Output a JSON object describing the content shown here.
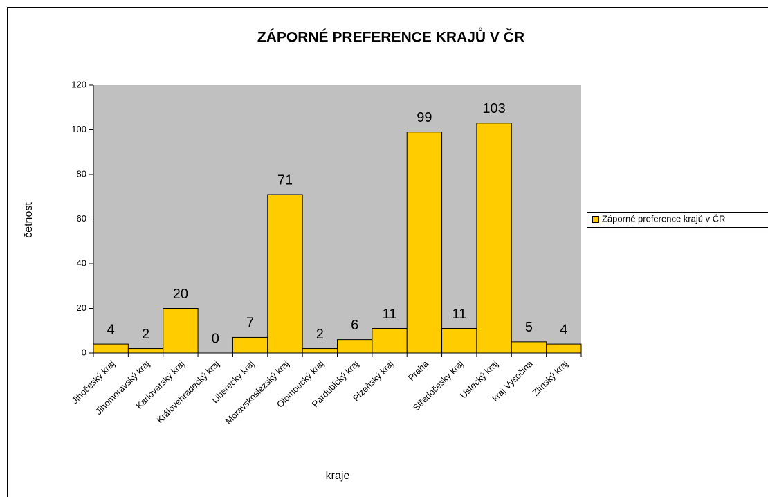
{
  "chart_data": {
    "type": "bar",
    "title": "ZÁPORNÉ PREFERENCE KRAJŮ V ČR",
    "x_label": "kraje",
    "y_label": "četnost",
    "categories": [
      "Jihočeský kraj",
      "Jihomoravský kraj",
      "Karlovarský kraj",
      "Královéhradecký kraj",
      "Liberecký kraj",
      "Moravskoslezský kraj",
      "Olomoucký kraj",
      "Pardubický kraj",
      "Plzeňský kraj",
      "Praha",
      "Středočeský kraj",
      "Ústecký kraj",
      "kraj Vysočina",
      "Zlínský kraj"
    ],
    "series": [
      {
        "name": "Záporné preference krajů v ČR",
        "color": "#ffcc00",
        "values": [
          4,
          2,
          20,
          0,
          7,
          71,
          2,
          6,
          11,
          99,
          11,
          103,
          5,
          4
        ]
      }
    ],
    "ylim": [
      0,
      120
    ],
    "yticks": [
      0,
      20,
      40,
      60,
      80,
      100,
      120
    ],
    "legend": "right",
    "plot_background": "#c0c0c0"
  }
}
